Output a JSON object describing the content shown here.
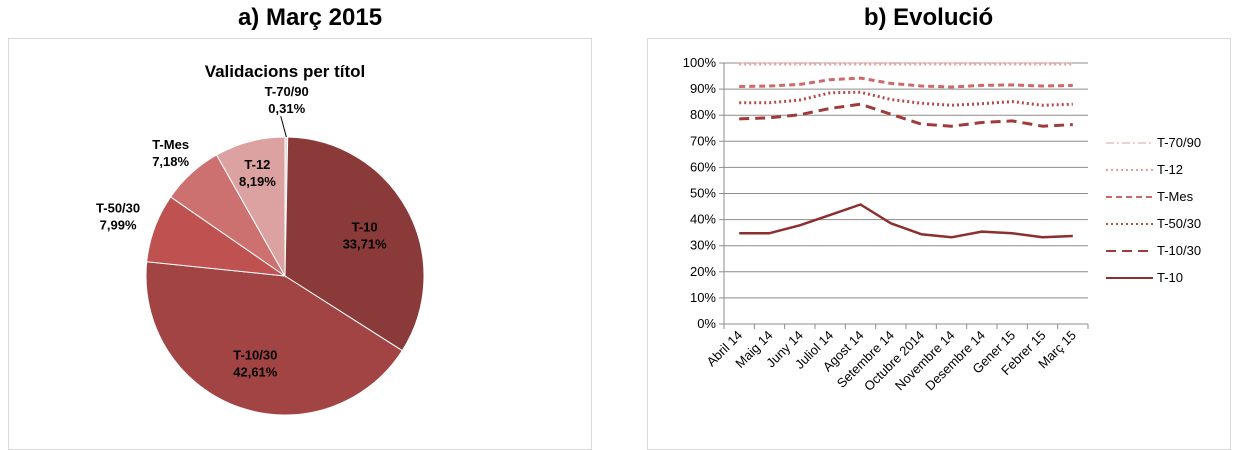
{
  "headings": {
    "a": "a) Març 2015",
    "b": "b) Evolució"
  },
  "chart_data": [
    {
      "type": "pie",
      "title": "Validacions per títol",
      "slices": [
        {
          "name": "T-70/90",
          "value": 0.31,
          "label": "0,31%",
          "color": "#d9d9d9"
        },
        {
          "name": "T-10",
          "value": 33.71,
          "label": "33,71%",
          "color": "#8b3a3a"
        },
        {
          "name": "T-10/30",
          "value": 42.61,
          "label": "42,61%",
          "color": "#a34444"
        },
        {
          "name": "T-50/30",
          "value": 7.99,
          "label": "7,99%",
          "color": "#bf5151"
        },
        {
          "name": "T-Mes",
          "value": 7.18,
          "label": "7,18%",
          "color": "#cd7070"
        },
        {
          "name": "T-12",
          "value": 8.19,
          "label": "8,19%",
          "color": "#dca2a2"
        }
      ]
    },
    {
      "type": "line",
      "title": "",
      "categories": [
        "Abril 14",
        "Maig 14",
        "Juny 14",
        "Juliol 14",
        "Agost 14",
        "Setembre 14",
        "Octubre 2014",
        "Novembre 14",
        "Desembre 14",
        "Gener 15",
        "Febrer 15",
        "Març 15"
      ],
      "ylim": [
        0,
        100
      ],
      "yticks": [
        "0%",
        "10%",
        "20%",
        "30%",
        "40%",
        "50%",
        "60%",
        "70%",
        "80%",
        "90%",
        "100%"
      ],
      "grid": true,
      "legend": "right",
      "series": [
        {
          "name": "T-70/90",
          "dash": "dashdot",
          "color": "#e6c2c2",
          "values": [
            100,
            100,
            100,
            100,
            100,
            100,
            100,
            100,
            100,
            100,
            100,
            100
          ]
        },
        {
          "name": "T-12",
          "dash": "dot",
          "color": "#e6a0a0",
          "values": [
            99.6,
            99.6,
            99.6,
            99.6,
            99.6,
            99.6,
            99.6,
            99.6,
            99.6,
            99.6,
            99.6,
            99.6
          ]
        },
        {
          "name": "T-Mes",
          "dash": "dash",
          "color": "#cc6a6a",
          "values": [
            91,
            91.2,
            91.8,
            93.6,
            94.2,
            92.2,
            91.2,
            90.8,
            91.4,
            91.6,
            91.2,
            91.4
          ]
        },
        {
          "name": "T-50/30",
          "dash": "dot",
          "color": "#b84a4a",
          "values": [
            84.8,
            84.8,
            85.8,
            88.6,
            88.8,
            86,
            84.6,
            83.8,
            84.4,
            85.2,
            83.8,
            84.2
          ]
        },
        {
          "name": "T-10/30",
          "dash": "longdash",
          "color": "#9e3c3c",
          "values": [
            78.6,
            79,
            80.2,
            82.6,
            84.2,
            80.4,
            76.6,
            75.8,
            77.2,
            77.8,
            75.8,
            76.4
          ]
        },
        {
          "name": "T-10",
          "dash": "solid",
          "color": "#8b2f2f",
          "values": [
            34.8,
            34.8,
            37.8,
            41.8,
            45.8,
            38.6,
            34.4,
            33.2,
            35.4,
            34.8,
            33.2,
            33.7
          ]
        }
      ]
    }
  ]
}
